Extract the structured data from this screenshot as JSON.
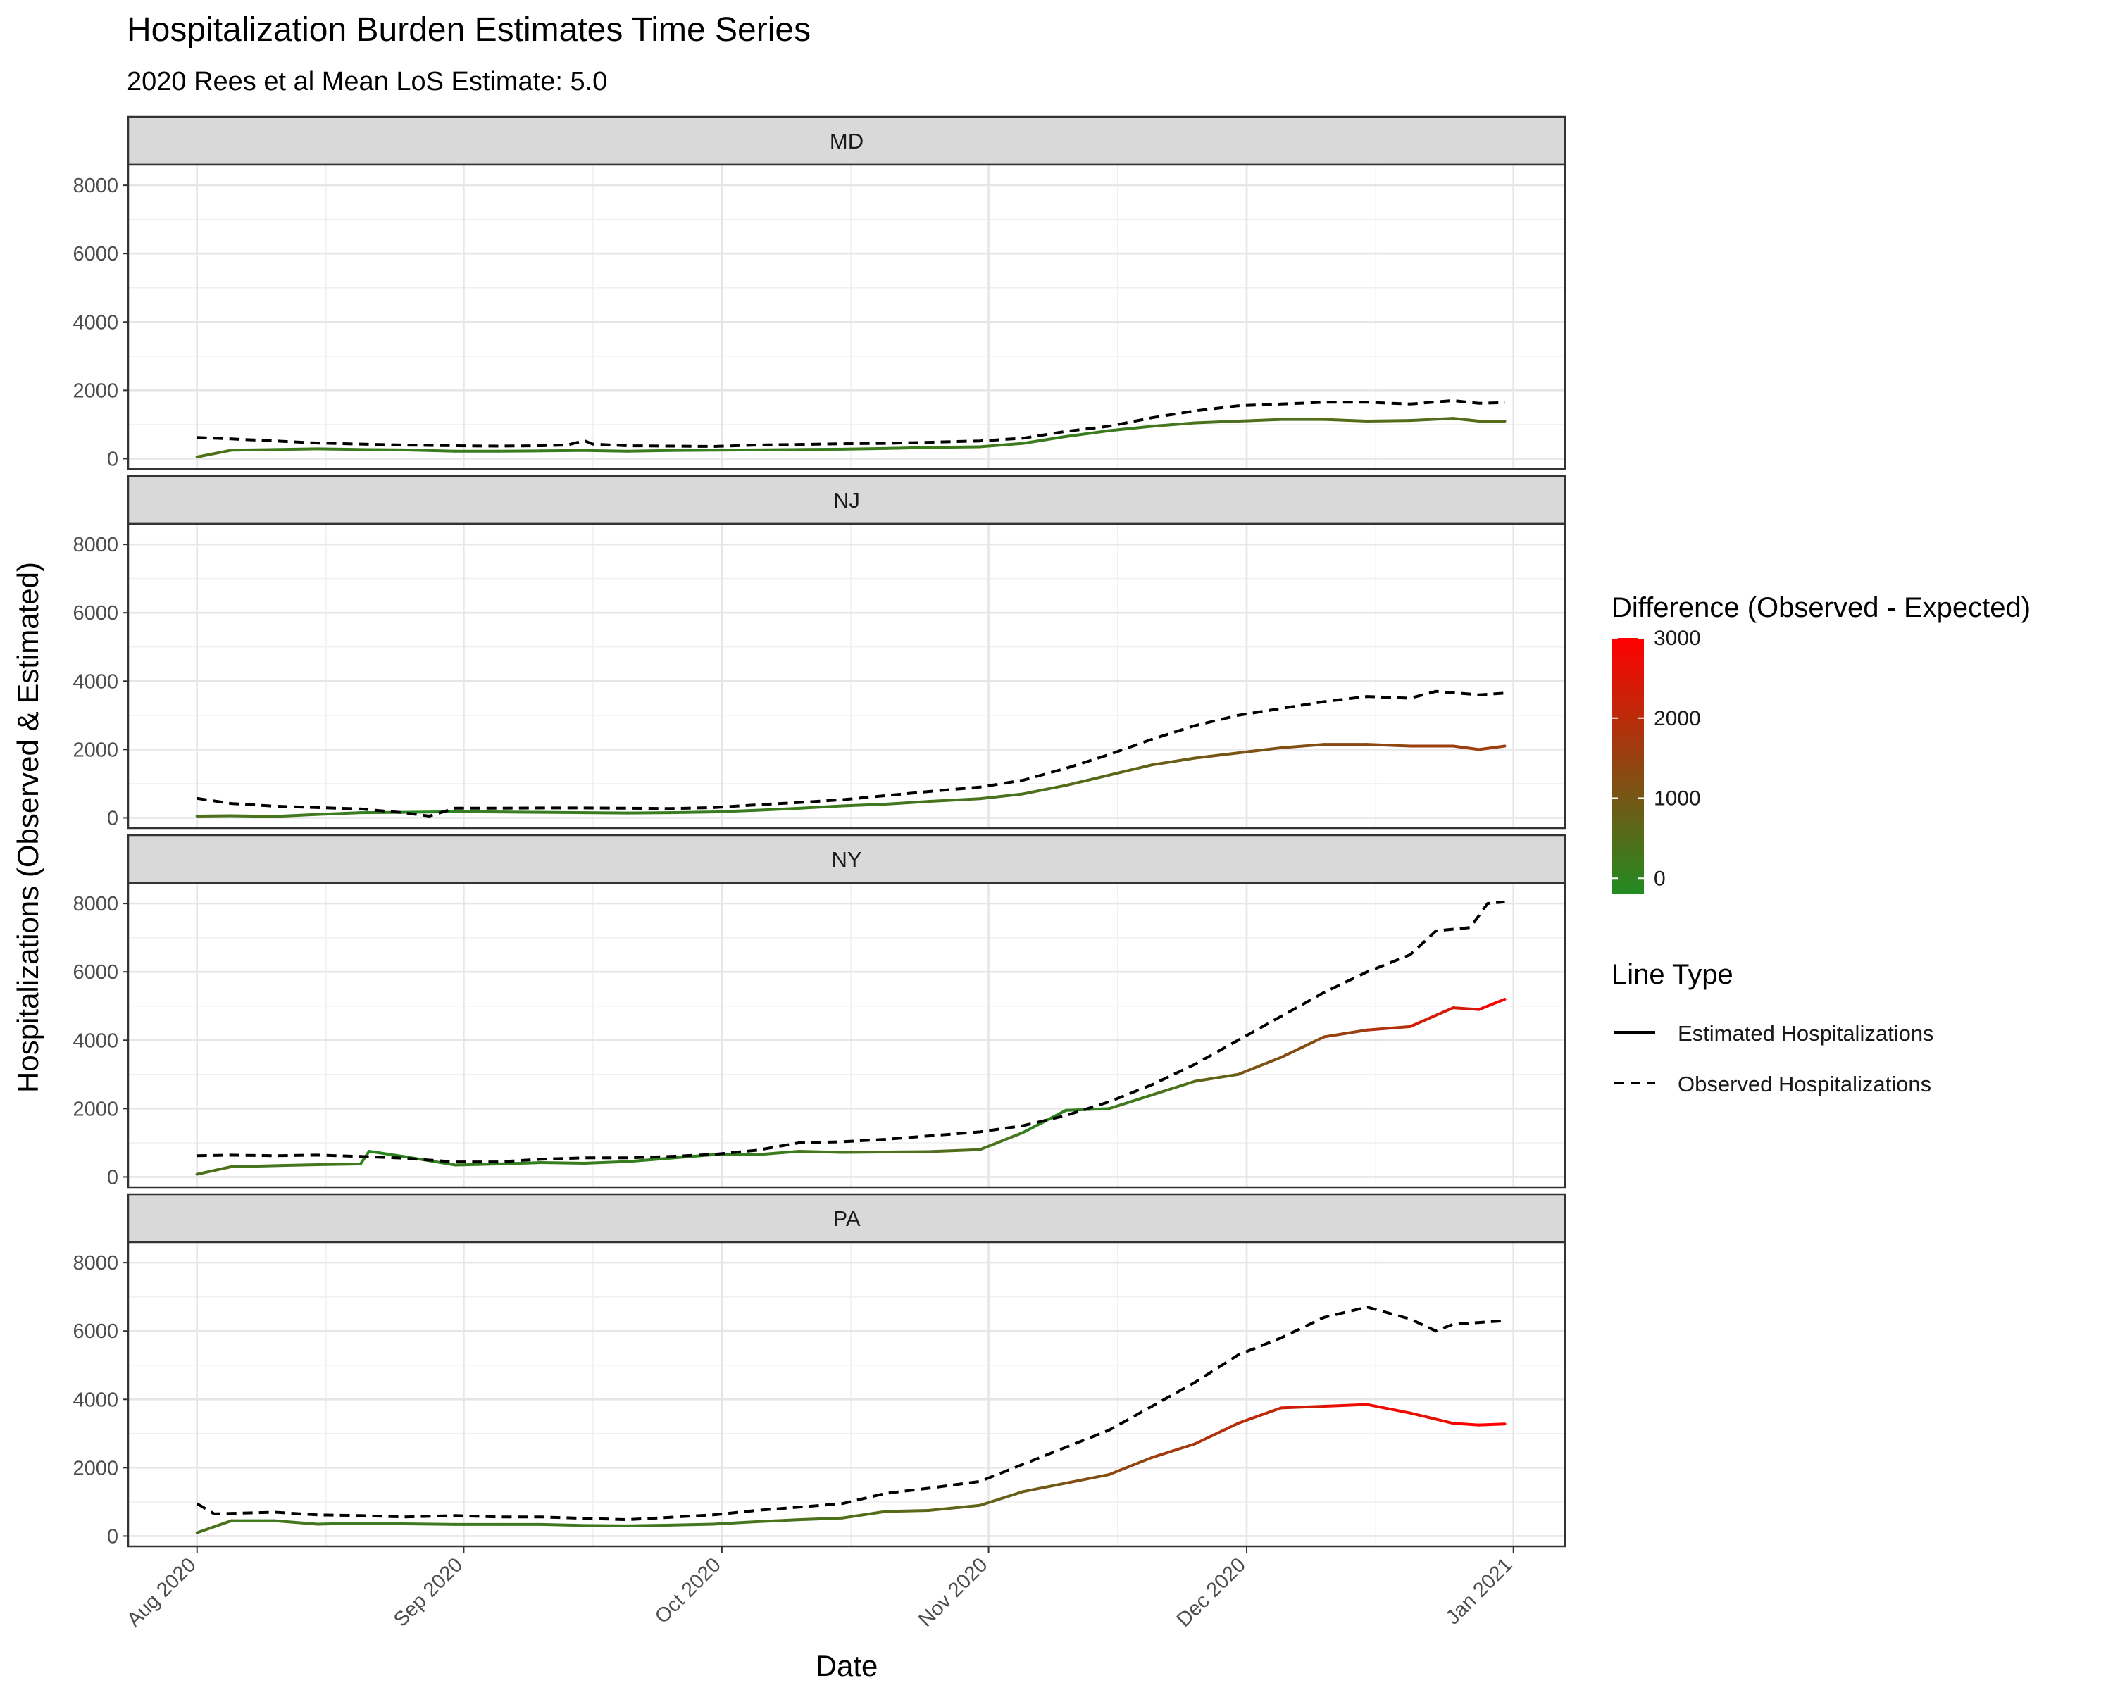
{
  "chart_data": {
    "type": "line",
    "title": "Hospitalization Burden Estimates Time Series",
    "subtitle": "2020 Rees et al Mean LoS Estimate: 5.0",
    "xlabel": "Date",
    "ylabel": "Hospitalizations (Observed & Estimated)",
    "x_ticks": [
      "Aug 2020",
      "Sep 2020",
      "Oct 2020",
      "Nov 2020",
      "Dec 2020",
      "Jan 2021"
    ],
    "x_range": [
      "2020-08-01",
      "2020-12-31"
    ],
    "y_ticks": [
      0,
      2000,
      4000,
      6000,
      8000
    ],
    "ylim": [
      -300,
      8600
    ],
    "grid": true,
    "legend_color": {
      "title": "Difference (Observed - Expected)",
      "ticks": [
        0,
        1000,
        2000,
        3000
      ],
      "range": [
        -200,
        3000
      ],
      "colors": [
        "#228B22",
        "#FF0000"
      ]
    },
    "legend_linetype": {
      "title": "Line Type",
      "entries": [
        "Estimated Hospitalizations",
        "Observed Hospitalizations"
      ]
    },
    "panels": [
      {
        "name": "MD",
        "estimated": [
          [
            "2020-08-01",
            50
          ],
          [
            "2020-08-05",
            250
          ],
          [
            "2020-08-10",
            270
          ],
          [
            "2020-08-15",
            290
          ],
          [
            "2020-08-20",
            270
          ],
          [
            "2020-08-25",
            260
          ],
          [
            "2020-08-31",
            220
          ],
          [
            "2020-09-05",
            220
          ],
          [
            "2020-09-10",
            230
          ],
          [
            "2020-09-15",
            240
          ],
          [
            "2020-09-20",
            220
          ],
          [
            "2020-09-25",
            240
          ],
          [
            "2020-09-30",
            250
          ],
          [
            "2020-10-05",
            260
          ],
          [
            "2020-10-10",
            270
          ],
          [
            "2020-10-15",
            280
          ],
          [
            "2020-10-20",
            300
          ],
          [
            "2020-10-25",
            330
          ],
          [
            "2020-10-31",
            350
          ],
          [
            "2020-11-05",
            450
          ],
          [
            "2020-11-10",
            650
          ],
          [
            "2020-11-15",
            820
          ],
          [
            "2020-11-20",
            950
          ],
          [
            "2020-11-25",
            1050
          ],
          [
            "2020-11-30",
            1100
          ],
          [
            "2020-12-05",
            1150
          ],
          [
            "2020-12-10",
            1150
          ],
          [
            "2020-12-15",
            1100
          ],
          [
            "2020-12-20",
            1120
          ],
          [
            "2020-12-25",
            1180
          ],
          [
            "2020-12-28",
            1100
          ],
          [
            "2020-12-31",
            1100
          ]
        ],
        "observed": [
          [
            "2020-08-01",
            620
          ],
          [
            "2020-08-05",
            580
          ],
          [
            "2020-08-10",
            520
          ],
          [
            "2020-08-15",
            460
          ],
          [
            "2020-08-20",
            430
          ],
          [
            "2020-08-25",
            400
          ],
          [
            "2020-08-31",
            380
          ],
          [
            "2020-09-05",
            370
          ],
          [
            "2020-09-10",
            380
          ],
          [
            "2020-09-13",
            400
          ],
          [
            "2020-09-15",
            530
          ],
          [
            "2020-09-16",
            430
          ],
          [
            "2020-09-20",
            380
          ],
          [
            "2020-09-25",
            370
          ],
          [
            "2020-09-30",
            360
          ],
          [
            "2020-10-05",
            400
          ],
          [
            "2020-10-10",
            420
          ],
          [
            "2020-10-15",
            440
          ],
          [
            "2020-10-20",
            450
          ],
          [
            "2020-10-25",
            480
          ],
          [
            "2020-10-31",
            520
          ],
          [
            "2020-11-05",
            600
          ],
          [
            "2020-11-10",
            800
          ],
          [
            "2020-11-15",
            950
          ],
          [
            "2020-11-20",
            1200
          ],
          [
            "2020-11-25",
            1400
          ],
          [
            "2020-11-30",
            1550
          ],
          [
            "2020-12-05",
            1600
          ],
          [
            "2020-12-10",
            1650
          ],
          [
            "2020-12-15",
            1650
          ],
          [
            "2020-12-20",
            1600
          ],
          [
            "2020-12-25",
            1700
          ],
          [
            "2020-12-28",
            1620
          ],
          [
            "2020-12-31",
            1640
          ]
        ]
      },
      {
        "name": "NJ",
        "estimated": [
          [
            "2020-08-01",
            50
          ],
          [
            "2020-08-05",
            60
          ],
          [
            "2020-08-10",
            40
          ],
          [
            "2020-08-15",
            100
          ],
          [
            "2020-08-20",
            150
          ],
          [
            "2020-08-25",
            160
          ],
          [
            "2020-08-31",
            180
          ],
          [
            "2020-09-05",
            170
          ],
          [
            "2020-09-10",
            160
          ],
          [
            "2020-09-15",
            150
          ],
          [
            "2020-09-20",
            140
          ],
          [
            "2020-09-25",
            150
          ],
          [
            "2020-09-30",
            170
          ],
          [
            "2020-10-05",
            220
          ],
          [
            "2020-10-10",
            280
          ],
          [
            "2020-10-15",
            350
          ],
          [
            "2020-10-20",
            400
          ],
          [
            "2020-10-25",
            480
          ],
          [
            "2020-10-31",
            560
          ],
          [
            "2020-11-05",
            700
          ],
          [
            "2020-11-10",
            950
          ],
          [
            "2020-11-15",
            1250
          ],
          [
            "2020-11-20",
            1550
          ],
          [
            "2020-11-25",
            1750
          ],
          [
            "2020-11-30",
            1900
          ],
          [
            "2020-12-05",
            2050
          ],
          [
            "2020-12-10",
            2150
          ],
          [
            "2020-12-15",
            2150
          ],
          [
            "2020-12-20",
            2100
          ],
          [
            "2020-12-25",
            2100
          ],
          [
            "2020-12-28",
            2000
          ],
          [
            "2020-12-31",
            2100
          ]
        ],
        "observed": [
          [
            "2020-08-01",
            570
          ],
          [
            "2020-08-05",
            420
          ],
          [
            "2020-08-10",
            340
          ],
          [
            "2020-08-15",
            300
          ],
          [
            "2020-08-20",
            260
          ],
          [
            "2020-08-25",
            150
          ],
          [
            "2020-08-28",
            50
          ],
          [
            "2020-08-31",
            280
          ],
          [
            "2020-09-05",
            280
          ],
          [
            "2020-09-10",
            290
          ],
          [
            "2020-09-15",
            290
          ],
          [
            "2020-09-20",
            280
          ],
          [
            "2020-09-25",
            270
          ],
          [
            "2020-09-30",
            300
          ],
          [
            "2020-10-05",
            380
          ],
          [
            "2020-10-10",
            450
          ],
          [
            "2020-10-15",
            530
          ],
          [
            "2020-10-20",
            650
          ],
          [
            "2020-10-25",
            770
          ],
          [
            "2020-10-31",
            900
          ],
          [
            "2020-11-05",
            1100
          ],
          [
            "2020-11-10",
            1450
          ],
          [
            "2020-11-15",
            1850
          ],
          [
            "2020-11-20",
            2300
          ],
          [
            "2020-11-25",
            2700
          ],
          [
            "2020-11-30",
            3000
          ],
          [
            "2020-12-05",
            3200
          ],
          [
            "2020-12-10",
            3400
          ],
          [
            "2020-12-15",
            3550
          ],
          [
            "2020-12-20",
            3500
          ],
          [
            "2020-12-23",
            3700
          ],
          [
            "2020-12-28",
            3600
          ],
          [
            "2020-12-31",
            3650
          ]
        ]
      },
      {
        "name": "NY",
        "estimated": [
          [
            "2020-08-01",
            80
          ],
          [
            "2020-08-05",
            300
          ],
          [
            "2020-08-10",
            330
          ],
          [
            "2020-08-15",
            360
          ],
          [
            "2020-08-20",
            380
          ],
          [
            "2020-08-21",
            750
          ],
          [
            "2020-08-25",
            600
          ],
          [
            "2020-08-31",
            350
          ],
          [
            "2020-09-05",
            380
          ],
          [
            "2020-09-10",
            420
          ],
          [
            "2020-09-15",
            400
          ],
          [
            "2020-09-20",
            450
          ],
          [
            "2020-09-25",
            550
          ],
          [
            "2020-09-30",
            650
          ],
          [
            "2020-10-05",
            650
          ],
          [
            "2020-10-10",
            750
          ],
          [
            "2020-10-15",
            720
          ],
          [
            "2020-10-20",
            730
          ],
          [
            "2020-10-25",
            740
          ],
          [
            "2020-10-31",
            800
          ],
          [
            "2020-11-05",
            1300
          ],
          [
            "2020-11-10",
            1950
          ],
          [
            "2020-11-15",
            2000
          ],
          [
            "2020-11-20",
            2400
          ],
          [
            "2020-11-25",
            2800
          ],
          [
            "2020-11-30",
            3000
          ],
          [
            "2020-12-05",
            3500
          ],
          [
            "2020-12-10",
            4100
          ],
          [
            "2020-12-15",
            4300
          ],
          [
            "2020-12-20",
            4400
          ],
          [
            "2020-12-25",
            4950
          ],
          [
            "2020-12-28",
            4900
          ],
          [
            "2020-12-31",
            5200
          ]
        ],
        "observed": [
          [
            "2020-08-01",
            620
          ],
          [
            "2020-08-05",
            640
          ],
          [
            "2020-08-10",
            620
          ],
          [
            "2020-08-15",
            640
          ],
          [
            "2020-08-20",
            600
          ],
          [
            "2020-08-25",
            550
          ],
          [
            "2020-08-31",
            440
          ],
          [
            "2020-09-05",
            440
          ],
          [
            "2020-09-10",
            520
          ],
          [
            "2020-09-15",
            560
          ],
          [
            "2020-09-20",
            560
          ],
          [
            "2020-09-25",
            600
          ],
          [
            "2020-09-30",
            660
          ],
          [
            "2020-10-05",
            780
          ],
          [
            "2020-10-10",
            1000
          ],
          [
            "2020-10-15",
            1030
          ],
          [
            "2020-10-20",
            1100
          ],
          [
            "2020-10-25",
            1200
          ],
          [
            "2020-10-31",
            1320
          ],
          [
            "2020-11-05",
            1500
          ],
          [
            "2020-11-10",
            1800
          ],
          [
            "2020-11-15",
            2200
          ],
          [
            "2020-11-20",
            2700
          ],
          [
            "2020-11-25",
            3300
          ],
          [
            "2020-11-30",
            4000
          ],
          [
            "2020-12-05",
            4700
          ],
          [
            "2020-12-10",
            5400
          ],
          [
            "2020-12-15",
            6000
          ],
          [
            "2020-12-20",
            6500
          ],
          [
            "2020-12-23",
            7200
          ],
          [
            "2020-12-27",
            7300
          ],
          [
            "2020-12-29",
            8000
          ],
          [
            "2020-12-31",
            8050
          ]
        ]
      },
      {
        "name": "PA",
        "estimated": [
          [
            "2020-08-01",
            100
          ],
          [
            "2020-08-05",
            450
          ],
          [
            "2020-08-10",
            450
          ],
          [
            "2020-08-15",
            350
          ],
          [
            "2020-08-20",
            380
          ],
          [
            "2020-08-25",
            360
          ],
          [
            "2020-08-31",
            340
          ],
          [
            "2020-09-05",
            340
          ],
          [
            "2020-09-10",
            340
          ],
          [
            "2020-09-15",
            310
          ],
          [
            "2020-09-20",
            300
          ],
          [
            "2020-09-25",
            320
          ],
          [
            "2020-09-30",
            350
          ],
          [
            "2020-10-05",
            420
          ],
          [
            "2020-10-10",
            480
          ],
          [
            "2020-10-15",
            530
          ],
          [
            "2020-10-20",
            720
          ],
          [
            "2020-10-25",
            750
          ],
          [
            "2020-10-31",
            900
          ],
          [
            "2020-11-05",
            1300
          ],
          [
            "2020-11-10",
            1550
          ],
          [
            "2020-11-15",
            1800
          ],
          [
            "2020-11-20",
            2300
          ],
          [
            "2020-11-25",
            2700
          ],
          [
            "2020-11-30",
            3300
          ],
          [
            "2020-12-05",
            3750
          ],
          [
            "2020-12-10",
            3800
          ],
          [
            "2020-12-15",
            3850
          ],
          [
            "2020-12-20",
            3600
          ],
          [
            "2020-12-25",
            3300
          ],
          [
            "2020-12-28",
            3250
          ],
          [
            "2020-12-31",
            3280
          ]
        ],
        "observed": [
          [
            "2020-08-01",
            950
          ],
          [
            "2020-08-03",
            650
          ],
          [
            "2020-08-10",
            700
          ],
          [
            "2020-08-15",
            620
          ],
          [
            "2020-08-20",
            600
          ],
          [
            "2020-08-25",
            560
          ],
          [
            "2020-08-31",
            600
          ],
          [
            "2020-09-05",
            560
          ],
          [
            "2020-09-10",
            560
          ],
          [
            "2020-09-15",
            520
          ],
          [
            "2020-09-20",
            480
          ],
          [
            "2020-09-25",
            550
          ],
          [
            "2020-09-30",
            620
          ],
          [
            "2020-10-05",
            750
          ],
          [
            "2020-10-10",
            850
          ],
          [
            "2020-10-15",
            950
          ],
          [
            "2020-10-20",
            1250
          ],
          [
            "2020-10-25",
            1400
          ],
          [
            "2020-10-31",
            1600
          ],
          [
            "2020-11-05",
            2100
          ],
          [
            "2020-11-10",
            2600
          ],
          [
            "2020-11-15",
            3100
          ],
          [
            "2020-11-20",
            3800
          ],
          [
            "2020-11-25",
            4500
          ],
          [
            "2020-11-30",
            5300
          ],
          [
            "2020-12-05",
            5800
          ],
          [
            "2020-12-10",
            6400
          ],
          [
            "2020-12-15",
            6700
          ],
          [
            "2020-12-20",
            6350
          ],
          [
            "2020-12-23",
            6000
          ],
          [
            "2020-12-25",
            6200
          ],
          [
            "2020-12-28",
            6250
          ],
          [
            "2020-12-31",
            6300
          ]
        ]
      }
    ]
  }
}
